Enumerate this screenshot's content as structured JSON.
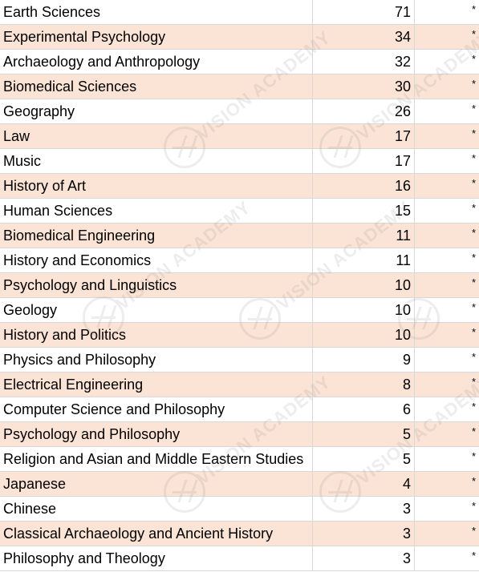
{
  "rows": [
    {
      "subject": "Earth Sciences",
      "count": "71",
      "mark": "*"
    },
    {
      "subject": "Experimental Psychology",
      "count": "34",
      "mark": "*"
    },
    {
      "subject": "Archaeology and Anthropology",
      "count": "32",
      "mark": "*"
    },
    {
      "subject": "Biomedical Sciences",
      "count": "30",
      "mark": "*"
    },
    {
      "subject": "Geography",
      "count": "26",
      "mark": "*"
    },
    {
      "subject": "Law",
      "count": "17",
      "mark": "*"
    },
    {
      "subject": "Music",
      "count": "17",
      "mark": "*"
    },
    {
      "subject": "History of Art",
      "count": "16",
      "mark": "*"
    },
    {
      "subject": "Human Sciences",
      "count": "15",
      "mark": "*"
    },
    {
      "subject": "Biomedical Engineering",
      "count": "11",
      "mark": "*"
    },
    {
      "subject": "History and Economics",
      "count": "11",
      "mark": "*"
    },
    {
      "subject": "Psychology and Linguistics",
      "count": "10",
      "mark": "*"
    },
    {
      "subject": "Geology",
      "count": "10",
      "mark": "*"
    },
    {
      "subject": "History and Politics",
      "count": "10",
      "mark": "*"
    },
    {
      "subject": "Physics and Philosophy",
      "count": "9",
      "mark": "*"
    },
    {
      "subject": "Electrical Engineering",
      "count": "8",
      "mark": "*"
    },
    {
      "subject": "Computer Science and Philosophy",
      "count": "6",
      "mark": "*"
    },
    {
      "subject": "Psychology and Philosophy",
      "count": "5",
      "mark": "*"
    },
    {
      "subject": "Religion and Asian and Middle Eastern Studies",
      "count": "5",
      "mark": "*"
    },
    {
      "subject": "Japanese",
      "count": "4",
      "mark": "*"
    },
    {
      "subject": "Chinese",
      "count": "3",
      "mark": "*"
    },
    {
      "subject": "Classical Archaeology and Ancient History",
      "count": "3",
      "mark": "*"
    },
    {
      "subject": "Philosophy and Theology",
      "count": "3",
      "mark": "*"
    }
  ],
  "watermark": {
    "text": "VISION ACADEMY"
  },
  "colors": {
    "shaded_row": "#fbe4d5",
    "plain_row": "#ffffff",
    "grid_line": "#d8d8d8"
  }
}
